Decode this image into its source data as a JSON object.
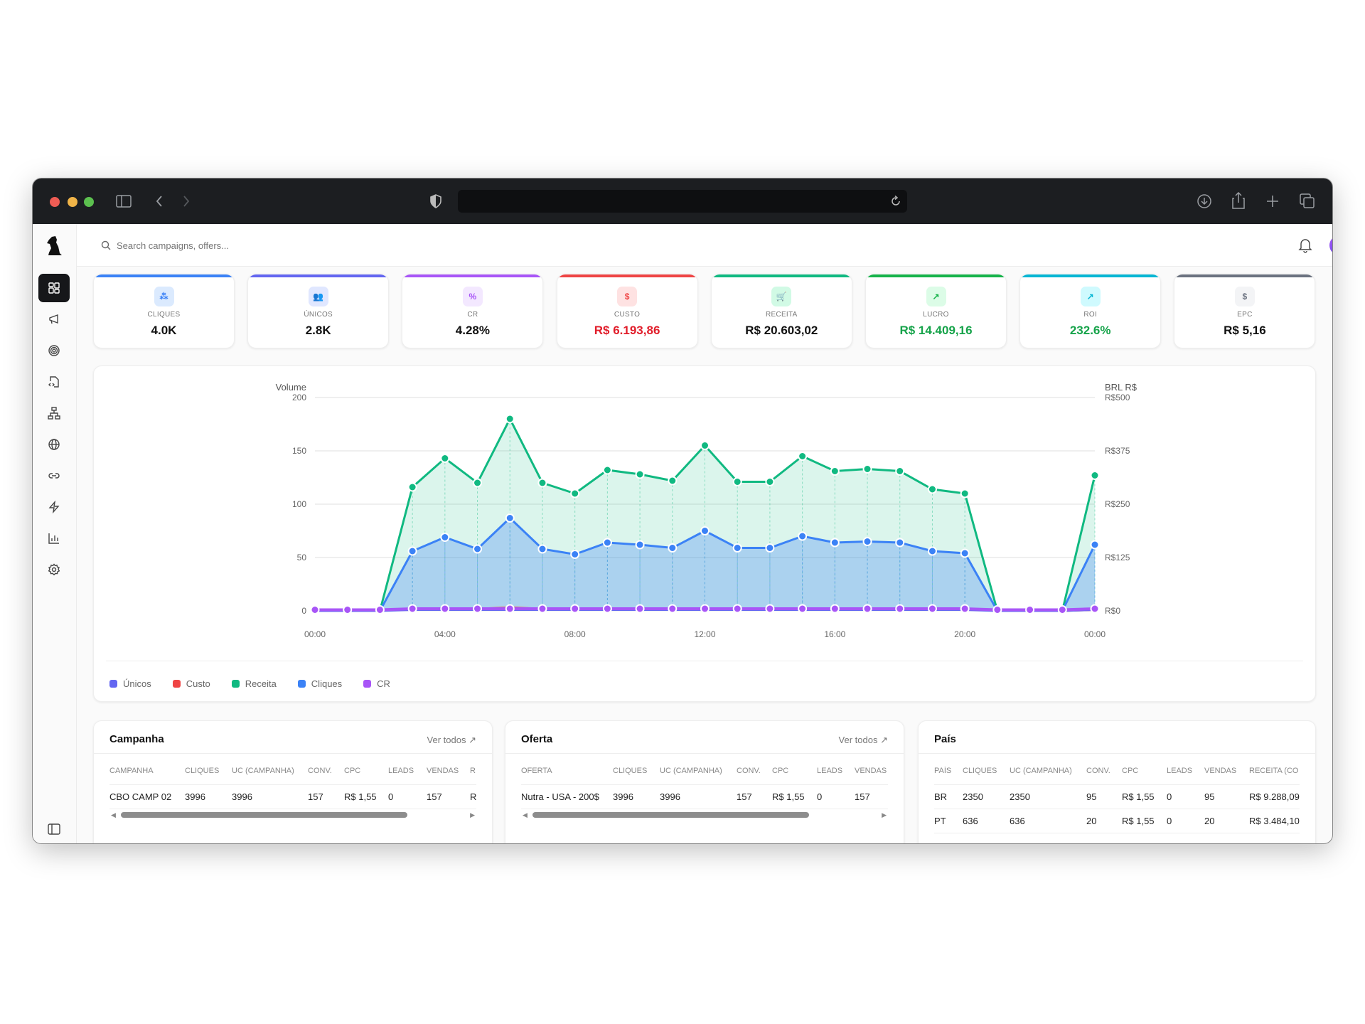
{
  "browser": {
    "icons": [
      "sidebar-toggle-icon",
      "chevron-left-icon",
      "chevron-right-icon",
      "shield-icon",
      "reload-icon",
      "download-icon",
      "share-icon",
      "plus-icon",
      "tabs-icon"
    ]
  },
  "header": {
    "search_placeholder": "Search campaigns, offers..."
  },
  "sidebar": {
    "items": [
      "dashboard",
      "campaigns",
      "target",
      "offers-code",
      "network",
      "globe",
      "link",
      "lightning",
      "reports",
      "settings"
    ]
  },
  "kpis": [
    {
      "label": "CLIQUES",
      "value": "4.0K",
      "color": "#3b82f6",
      "icon": "cursor-click-icon",
      "glyph": "⁂",
      "icon_bg": "#dbeafe",
      "value_color": "#111111"
    },
    {
      "label": "ÚNICOS",
      "value": "2.8K",
      "color": "#6366f1",
      "icon": "users-icon",
      "glyph": "👥",
      "icon_bg": "#e0e7ff",
      "value_color": "#111111"
    },
    {
      "label": "CR",
      "value": "4.28%",
      "color": "#a855f7",
      "icon": "percent-icon",
      "glyph": "%",
      "icon_bg": "#f3e8ff",
      "value_color": "#111111"
    },
    {
      "label": "CUSTO",
      "value": "R$ 6.193,86",
      "color": "#ef4444",
      "icon": "dollar-icon",
      "glyph": "$",
      "icon_bg": "#fee2e2",
      "value_color": "#e11d2a"
    },
    {
      "label": "RECEITA",
      "value": "R$ 20.603,02",
      "color": "#10b981",
      "icon": "cart-icon",
      "glyph": "🛒",
      "icon_bg": "#d1fae5",
      "value_color": "#111111"
    },
    {
      "label": "LUCRO",
      "value": "R$ 14.409,16",
      "color": "#16b34a",
      "icon": "trending-up-icon",
      "glyph": "↗",
      "icon_bg": "#dcfce7",
      "value_color": "#16a34a"
    },
    {
      "label": "ROI",
      "value": "232.6%",
      "color": "#06b6d4",
      "icon": "arrow-up-right-icon",
      "glyph": "↗",
      "icon_bg": "#cffafe",
      "value_color": "#16a34a"
    },
    {
      "label": "EPC",
      "value": "R$ 5,16",
      "color": "#6b7280",
      "icon": "dollar-icon",
      "glyph": "$",
      "icon_bg": "#f3f4f6",
      "value_color": "#111111"
    }
  ],
  "chart_data": {
    "type": "line",
    "ylabel": "Volume",
    "y2label": "BRL R$",
    "ylim": [
      0,
      200
    ],
    "y2lim": [
      0,
      500
    ],
    "yticks": [
      "0",
      "50",
      "100",
      "150",
      "200"
    ],
    "y2ticks": [
      "R$0",
      "R$125",
      "R$250",
      "R$375",
      "R$500"
    ],
    "xticks": [
      "00:00",
      "04:00",
      "08:00",
      "12:00",
      "16:00",
      "20:00",
      "00:00"
    ],
    "x": [
      "00:00",
      "01:00",
      "02:00",
      "03:00",
      "04:00",
      "05:00",
      "06:00",
      "07:00",
      "08:00",
      "09:00",
      "10:00",
      "11:00",
      "12:00",
      "13:00",
      "14:00",
      "15:00",
      "16:00",
      "17:00",
      "18:00",
      "19:00",
      "20:00",
      "21:00",
      "22:00",
      "23:00",
      "00:00"
    ],
    "grid": true,
    "legend": "bottom-left",
    "series": [
      {
        "name": "Únicos",
        "color": "#6366f1",
        "values": [
          0,
          0,
          0,
          1,
          1,
          1,
          1,
          1,
          1,
          1,
          1,
          1,
          1,
          1,
          1,
          1,
          1,
          1,
          1,
          1,
          1,
          0,
          0,
          0,
          1
        ]
      },
      {
        "name": "Custo",
        "color": "#ef4444",
        "values": [
          0,
          0,
          0,
          2,
          2,
          2,
          3,
          2,
          2,
          2,
          2,
          2,
          2,
          2,
          2,
          2,
          2,
          2,
          2,
          2,
          2,
          0,
          0,
          0,
          1
        ]
      },
      {
        "name": "Receita",
        "color": "#10b981",
        "values": [
          0,
          0,
          0,
          116,
          143,
          120,
          180,
          120,
          110,
          132,
          128,
          122,
          155,
          121,
          121,
          145,
          131,
          133,
          131,
          114,
          110,
          0,
          0,
          0,
          127
        ]
      },
      {
        "name": "Cliques",
        "color": "#3b82f6",
        "values": [
          0,
          0,
          0,
          56,
          69,
          58,
          87,
          58,
          53,
          64,
          62,
          59,
          75,
          59,
          59,
          70,
          64,
          65,
          64,
          56,
          54,
          0,
          0,
          0,
          62
        ]
      },
      {
        "name": "CR",
        "color": "#a855f7",
        "values": [
          1,
          1,
          1,
          2,
          2,
          2,
          2,
          2,
          2,
          2,
          2,
          2,
          2,
          2,
          2,
          2,
          2,
          2,
          2,
          2,
          2,
          1,
          1,
          1,
          2
        ]
      }
    ]
  },
  "tables": [
    {
      "title": "Campanha",
      "more": "Ver todos",
      "widths": [
        106,
        66,
        107,
        51,
        62,
        54,
        61,
        40
      ],
      "columns": [
        "CAMPANHA",
        "CLIQUES",
        "UC (CAMPANHA)",
        "CONV.",
        "CPC",
        "LEADS",
        "VENDAS",
        "R"
      ],
      "rows": [
        [
          "CBO CAMP 02",
          "3996",
          "3996",
          "157",
          "R$ 1,55",
          "0",
          "157",
          "R"
        ]
      ],
      "thumb": [
        0,
        0.83
      ]
    },
    {
      "title": "Oferta",
      "more": "Ver todos",
      "widths": [
        129,
        66,
        108,
        50,
        63,
        53,
        60
      ],
      "columns": [
        "OFERTA",
        "CLIQUES",
        "UC (CAMPANHA)",
        "CONV.",
        "CPC",
        "LEADS",
        "VENDAS"
      ],
      "rows": [
        [
          "Nutra - USA - 200$",
          "3996",
          "3996",
          "157",
          "R$ 1,55",
          "0",
          "157"
        ]
      ],
      "thumb": [
        0,
        0.8
      ]
    },
    {
      "title": "País",
      "more": "",
      "widths": [
        40,
        66,
        108,
        50,
        63,
        53,
        63,
        80
      ],
      "columns": [
        "PAÍS",
        "CLIQUES",
        "UC (CAMPANHA)",
        "CONV.",
        "CPC",
        "LEADS",
        "VENDAS",
        "RECEITA (CO"
      ],
      "rows": [
        [
          "BR",
          "2350",
          "2350",
          "95",
          "R$ 1,55",
          "0",
          "95",
          "R$ 9.288,09"
        ],
        [
          "PT",
          "636",
          "636",
          "20",
          "R$ 1,55",
          "0",
          "20",
          "R$ 3.484,10"
        ]
      ]
    }
  ]
}
